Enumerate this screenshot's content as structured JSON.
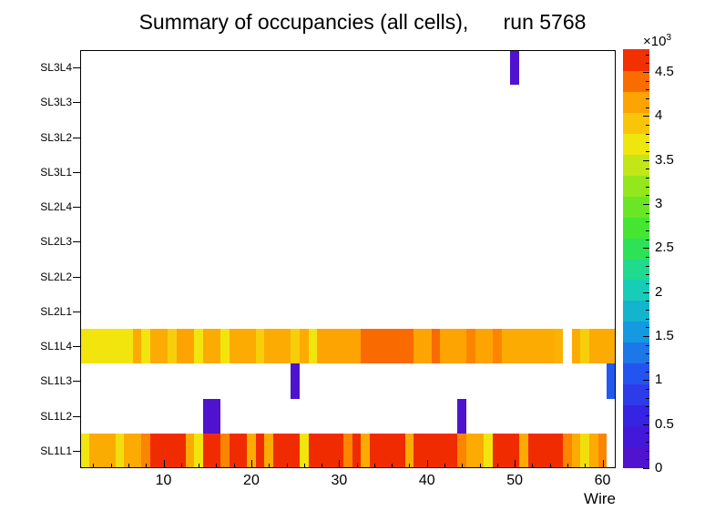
{
  "title": "Summary of occupancies (all cells),      run 5768",
  "chart_data": {
    "type": "heatmap",
    "title": "Summary of occupancies (all cells),      run 5768",
    "xlabel": "Wire",
    "x_min": 0.5,
    "x_max": 61.5,
    "x_major_ticks": [
      10,
      20,
      30,
      40,
      50,
      60
    ],
    "x_minor_step": 2,
    "rows_top_to_bottom": [
      "SL3L4",
      "SL3L3",
      "SL3L2",
      "SL3L1",
      "SL2L4",
      "SL2L3",
      "SL2L2",
      "SL2L1",
      "SL1L4",
      "SL1L3",
      "SL1L2",
      "SL1L1"
    ],
    "z_min": 0,
    "z_max": 4750,
    "z_tick_values": [
      0,
      500,
      1000,
      1500,
      2000,
      2500,
      3000,
      3500,
      4000,
      4500
    ],
    "z_tick_labels": [
      "0",
      "0.5",
      "1",
      "1.5",
      "2",
      "2.5",
      "3",
      "3.5",
      "4",
      "4.5"
    ],
    "z_minor_step": 100,
    "z_multiplier_base": "×10",
    "z_multiplier_exp": "3",
    "palette_stops": [
      "#5810c8",
      "#3a1ce0",
      "#2452f0",
      "#13a0e0",
      "#18d6b0",
      "#35e635",
      "#8ce61e",
      "#f2e60e",
      "#ff9900",
      "#ee1100"
    ],
    "palette_steps": 20,
    "cells": {
      "SL3L4": [
        [
          50,
          50,
          150
        ]
      ],
      "SL1L4": [
        [
          1,
          6,
          3700
        ],
        [
          7,
          7,
          4100
        ],
        [
          8,
          8,
          3700
        ],
        [
          9,
          10,
          4100
        ],
        [
          11,
          11,
          3850
        ],
        [
          12,
          13,
          4150
        ],
        [
          14,
          14,
          3700
        ],
        [
          15,
          16,
          4100
        ],
        [
          17,
          17,
          3700
        ],
        [
          18,
          20,
          4100
        ],
        [
          21,
          21,
          3850
        ],
        [
          22,
          24,
          4100
        ],
        [
          25,
          25,
          3850
        ],
        [
          26,
          26,
          4100
        ],
        [
          27,
          27,
          3700
        ],
        [
          28,
          32,
          4150
        ],
        [
          33,
          38,
          4400
        ],
        [
          39,
          40,
          4150
        ],
        [
          41,
          41,
          4400
        ],
        [
          42,
          44,
          4150
        ],
        [
          45,
          45,
          4300
        ],
        [
          46,
          47,
          4150
        ],
        [
          48,
          48,
          4300
        ],
        [
          49,
          54,
          4100
        ],
        [
          55,
          55,
          4050
        ],
        [
          57,
          57,
          4100
        ],
        [
          58,
          58,
          3850
        ],
        [
          59,
          61,
          4100
        ]
      ],
      "SL1L3": [
        [
          25,
          25,
          150
        ],
        [
          61,
          61,
          1100
        ]
      ],
      "SL1L2": [
        [
          15,
          16,
          150
        ],
        [
          44,
          44,
          150
        ]
      ],
      "SL1L1": [
        [
          1,
          1,
          3700
        ],
        [
          2,
          4,
          4100
        ],
        [
          5,
          5,
          3750
        ],
        [
          6,
          7,
          4100
        ],
        [
          8,
          8,
          4300
        ],
        [
          9,
          12,
          4650
        ],
        [
          13,
          13,
          4100
        ],
        [
          14,
          14,
          3700
        ],
        [
          15,
          16,
          4650
        ],
        [
          17,
          17,
          4300
        ],
        [
          18,
          19,
          4650
        ],
        [
          20,
          20,
          4100
        ],
        [
          21,
          21,
          4650
        ],
        [
          22,
          22,
          4100
        ],
        [
          23,
          25,
          4650
        ],
        [
          26,
          26,
          3700
        ],
        [
          27,
          30,
          4650
        ],
        [
          31,
          31,
          4300
        ],
        [
          32,
          32,
          4650
        ],
        [
          33,
          33,
          4100
        ],
        [
          34,
          37,
          4650
        ],
        [
          38,
          38,
          4100
        ],
        [
          39,
          43,
          4650
        ],
        [
          44,
          44,
          4300
        ],
        [
          45,
          46,
          4100
        ],
        [
          47,
          47,
          3700
        ],
        [
          48,
          50,
          4650
        ],
        [
          51,
          51,
          4100
        ],
        [
          52,
          55,
          4650
        ],
        [
          56,
          56,
          4300
        ],
        [
          57,
          57,
          4100
        ],
        [
          58,
          58,
          3750
        ],
        [
          59,
          59,
          4100
        ],
        [
          60,
          60,
          4300
        ]
      ]
    }
  }
}
